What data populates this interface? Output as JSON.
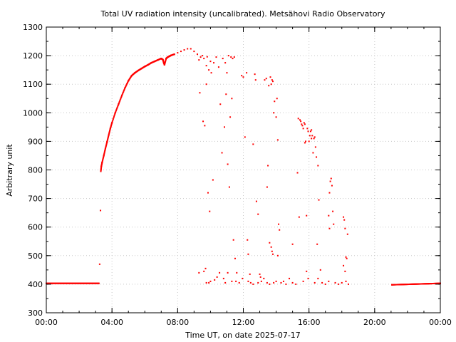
{
  "chart_data": {
    "type": "scatter",
    "title": "Total UV radiation intensity (uncalibrated). Metsähovi Radio Observatory",
    "xlabel": "Time UT, on date 2025-07-17",
    "ylabel": "Arbitrary unit",
    "xlim": [
      0,
      24
    ],
    "ylim": [
      300,
      1300
    ],
    "x_ticks": [
      {
        "value": 0,
        "label": "00:00"
      },
      {
        "value": 4,
        "label": "04:00"
      },
      {
        "value": 8,
        "label": "08:00"
      },
      {
        "value": 12,
        "label": "12:00"
      },
      {
        "value": 16,
        "label": "16:00"
      },
      {
        "value": 20,
        "label": "20:00"
      },
      {
        "value": 24,
        "label": "00:00"
      }
    ],
    "y_ticks": [
      300,
      400,
      500,
      600,
      700,
      800,
      900,
      1000,
      1100,
      1200,
      1300
    ],
    "grid": true,
    "marker_color": "#ff0000",
    "series": [
      {
        "points": [
          [
            0.0,
            403
          ],
          [
            3.2,
            403
          ],
          [
            3.25,
            470
          ],
          [
            3.3,
            658
          ],
          [
            3.32,
            795
          ],
          [
            3.35,
            812
          ],
          [
            3.4,
            826
          ],
          [
            3.5,
            850
          ],
          [
            3.6,
            875
          ],
          [
            3.7,
            898
          ],
          [
            3.8,
            922
          ],
          [
            3.9,
            945
          ],
          [
            4.0,
            965
          ],
          [
            4.2,
            1000
          ],
          [
            4.4,
            1030
          ],
          [
            4.6,
            1060
          ],
          [
            4.8,
            1088
          ],
          [
            5.0,
            1112
          ],
          [
            5.2,
            1130
          ],
          [
            5.4,
            1140
          ],
          [
            5.6,
            1148
          ],
          [
            5.8,
            1155
          ],
          [
            6.0,
            1162
          ],
          [
            6.2,
            1168
          ],
          [
            6.4,
            1175
          ],
          [
            6.6,
            1180
          ],
          [
            6.8,
            1185
          ],
          [
            7.0,
            1190
          ],
          [
            7.1,
            1186
          ],
          [
            7.15,
            1176
          ],
          [
            7.2,
            1168
          ],
          [
            7.3,
            1190
          ],
          [
            7.4,
            1195
          ],
          [
            7.5,
            1198
          ],
          [
            7.6,
            1201
          ],
          [
            7.8,
            1205
          ],
          [
            8.0,
            1210
          ],
          [
            8.2,
            1215
          ],
          [
            8.4,
            1220
          ],
          [
            8.6,
            1224
          ],
          [
            8.8,
            1224
          ],
          [
            9.0,
            1215
          ],
          [
            9.2,
            1205
          ],
          [
            9.3,
            1185
          ],
          [
            9.4,
            1195
          ],
          [
            9.5,
            1200
          ],
          [
            9.6,
            1190
          ],
          [
            9.8,
            1196
          ],
          [
            9.75,
            1165
          ],
          [
            9.9,
            1150
          ],
          [
            10.05,
            1140
          ],
          [
            10.2,
            1175
          ],
          [
            10.35,
            1195
          ],
          [
            10.5,
            1160
          ],
          [
            10.75,
            1190
          ],
          [
            10.9,
            1175
          ],
          [
            11.0,
            1140
          ],
          [
            11.1,
            1200
          ],
          [
            11.25,
            1195
          ],
          [
            11.35,
            1190
          ],
          [
            11.45,
            1195
          ],
          [
            9.35,
            1070
          ],
          [
            9.55,
            970
          ],
          [
            9.65,
            955
          ],
          [
            9.75,
            1100
          ],
          [
            10.0,
            1180
          ],
          [
            9.85,
            720
          ],
          [
            9.95,
            655
          ],
          [
            10.15,
            765
          ],
          [
            10.6,
            1030
          ],
          [
            10.7,
            860
          ],
          [
            10.85,
            950
          ],
          [
            10.95,
            1065
          ],
          [
            11.05,
            820
          ],
          [
            11.15,
            740
          ],
          [
            11.2,
            985
          ],
          [
            11.3,
            1050
          ],
          [
            11.4,
            555
          ],
          [
            11.5,
            490
          ],
          [
            11.6,
            440
          ],
          [
            11.9,
            1130
          ],
          [
            12.0,
            1125
          ],
          [
            12.1,
            915
          ],
          [
            12.2,
            1140
          ],
          [
            12.25,
            555
          ],
          [
            12.3,
            505
          ],
          [
            12.4,
            435
          ],
          [
            12.6,
            890
          ],
          [
            12.7,
            1135
          ],
          [
            12.75,
            1115
          ],
          [
            12.8,
            690
          ],
          [
            12.9,
            645
          ],
          [
            13.0,
            435
          ],
          [
            13.05,
            425
          ],
          [
            13.3,
            1115
          ],
          [
            13.4,
            1120
          ],
          [
            13.45,
            740
          ],
          [
            13.5,
            815
          ],
          [
            13.55,
            1095
          ],
          [
            13.6,
            545
          ],
          [
            13.65,
            1125
          ],
          [
            13.7,
            1100
          ],
          [
            13.75,
            1115
          ],
          [
            13.8,
            1110
          ],
          [
            13.85,
            1000
          ],
          [
            13.9,
            1040
          ],
          [
            14.0,
            985
          ],
          [
            14.05,
            1050
          ],
          [
            14.1,
            905
          ],
          [
            14.15,
            610
          ],
          [
            14.2,
            590
          ],
          [
            13.7,
            530
          ],
          [
            13.75,
            515
          ],
          [
            13.8,
            505
          ],
          [
            14.1,
            500
          ],
          [
            15.0,
            540
          ],
          [
            15.3,
            790
          ],
          [
            15.35,
            980
          ],
          [
            15.4,
            635
          ],
          [
            15.45,
            975
          ],
          [
            15.5,
            970
          ],
          [
            15.55,
            960
          ],
          [
            15.6,
            955
          ],
          [
            15.65,
            945
          ],
          [
            15.7,
            965
          ],
          [
            15.75,
            960
          ],
          [
            15.8,
            900
          ],
          [
            15.85,
            640
          ],
          [
            15.9,
            945
          ],
          [
            15.95,
            935
          ],
          [
            16.0,
            900
          ],
          [
            16.05,
            920
          ],
          [
            16.1,
            935
          ],
          [
            16.15,
            940
          ],
          [
            16.2,
            920
          ],
          [
            16.25,
            860
          ],
          [
            16.3,
            910
          ],
          [
            16.35,
            915
          ],
          [
            16.4,
            880
          ],
          [
            16.45,
            845
          ],
          [
            16.5,
            540
          ],
          [
            16.6,
            695
          ],
          [
            16.7,
            450
          ],
          [
            15.75,
            895
          ],
          [
            15.85,
            445
          ],
          [
            15.95,
            420
          ],
          [
            16.15,
            910
          ],
          [
            16.55,
            815
          ],
          [
            17.2,
            640
          ],
          [
            17.25,
            720
          ],
          [
            17.3,
            760
          ],
          [
            17.35,
            770
          ],
          [
            17.4,
            745
          ],
          [
            17.45,
            655
          ],
          [
            17.5,
            610
          ],
          [
            17.25,
            595
          ],
          [
            18.1,
            635
          ],
          [
            18.15,
            625
          ],
          [
            18.2,
            595
          ],
          [
            18.25,
            495
          ],
          [
            18.3,
            490
          ],
          [
            18.35,
            575
          ],
          [
            18.1,
            465
          ],
          [
            18.2,
            445
          ],
          [
            9.3,
            440
          ],
          [
            9.6,
            445
          ],
          [
            9.7,
            455
          ],
          [
            9.75,
            405
          ],
          [
            9.9,
            405
          ],
          [
            10.0,
            410
          ],
          [
            10.25,
            415
          ],
          [
            10.4,
            425
          ],
          [
            10.55,
            440
          ],
          [
            10.8,
            420
          ],
          [
            10.9,
            405
          ],
          [
            11.05,
            440
          ],
          [
            11.3,
            410
          ],
          [
            11.55,
            410
          ],
          [
            11.75,
            405
          ],
          [
            11.95,
            420
          ],
          [
            12.3,
            410
          ],
          [
            12.45,
            405
          ],
          [
            12.6,
            400
          ],
          [
            12.9,
            405
          ],
          [
            13.1,
            410
          ],
          [
            13.25,
            420
          ],
          [
            13.45,
            405
          ],
          [
            13.6,
            400
          ],
          [
            13.85,
            405
          ],
          [
            14.0,
            410
          ],
          [
            14.3,
            405
          ],
          [
            14.45,
            410
          ],
          [
            14.6,
            400
          ],
          [
            14.8,
            420
          ],
          [
            15.0,
            405
          ],
          [
            15.2,
            400
          ],
          [
            15.65,
            410
          ],
          [
            16.35,
            405
          ],
          [
            16.55,
            420
          ],
          [
            16.8,
            405
          ],
          [
            17.0,
            400
          ],
          [
            17.2,
            410
          ],
          [
            17.6,
            405
          ],
          [
            17.8,
            400
          ],
          [
            18.0,
            405
          ],
          [
            18.25,
            410
          ],
          [
            18.4,
            400
          ],
          [
            21.05,
            398
          ],
          [
            24.0,
            403
          ]
        ]
      }
    ]
  }
}
